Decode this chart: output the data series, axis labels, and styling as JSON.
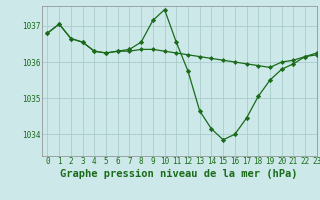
{
  "background_color": "#cce8e8",
  "grid_color": "#aacccc",
  "line_color": "#1a6b1a",
  "marker_color": "#1a6b1a",
  "title": "Graphe pression niveau de la mer (hPa)",
  "xlim": [
    -0.5,
    23
  ],
  "ylim": [
    1033.4,
    1037.55
  ],
  "yticks": [
    1034,
    1035,
    1036,
    1037
  ],
  "xticks": [
    0,
    1,
    2,
    3,
    4,
    5,
    6,
    7,
    8,
    9,
    10,
    11,
    12,
    13,
    14,
    15,
    16,
    17,
    18,
    19,
    20,
    21,
    22,
    23
  ],
  "series": [
    [
      1036.8,
      1037.05,
      1036.65,
      1036.55,
      1036.3,
      1036.25,
      1036.3,
      1036.3,
      1036.35,
      1036.35,
      1036.3,
      1036.25,
      1036.2,
      1036.15,
      1036.1,
      1036.05,
      1036.0,
      1035.95,
      1035.9,
      1035.85,
      1036.0,
      1036.05,
      1036.15,
      1036.2
    ],
    [
      1036.8,
      1037.05,
      1036.65,
      1036.55,
      1036.3,
      1036.25,
      1036.3,
      1036.35,
      1036.55,
      1037.15,
      1037.45,
      1036.55,
      1035.75,
      1034.65,
      1034.15,
      1033.85,
      1034.0,
      1034.45,
      1035.05,
      1035.5,
      1035.8,
      1035.95,
      1036.15,
      1036.25
    ]
  ],
  "title_fontsize": 7.5,
  "tick_fontsize": 5.5
}
